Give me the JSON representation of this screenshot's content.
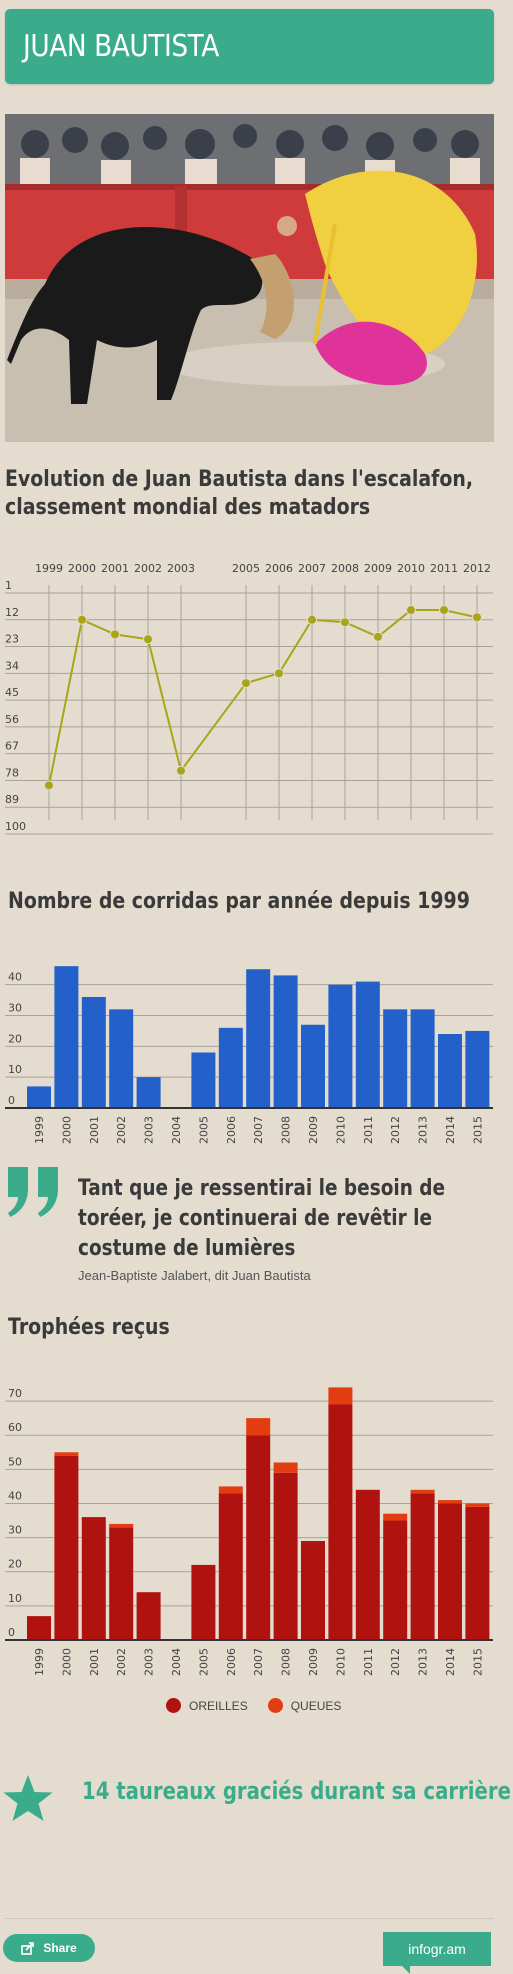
{
  "header": {
    "title": "JUAN BAUTISTA"
  },
  "photo": {
    "colors": {
      "sand": "#c9bfb0",
      "wall": "#cf3a3a",
      "cape_yellow": "#f0d040",
      "cape_pink": "#e0339a",
      "bull": "#1a1a1a"
    }
  },
  "ranking": {
    "title_line1": "Evolution de Juan Bautista dans l'escalafon,",
    "title_line2": "classement mondial des matadors"
  },
  "corridas": {
    "title": "Nombre de corridas par année depuis 1999"
  },
  "quote": {
    "text_line1": "Tant que je ressentirai le besoin de",
    "text_line2": "toréer, je continuerai de revêtir le",
    "text_line3": "costume de lumières",
    "author": "Jean-Baptiste Jalabert, dit Juan Bautista"
  },
  "trophees": {
    "title": "Trophées reçus",
    "legend": [
      {
        "label": "OREILLES",
        "color": "#b01210"
      },
      {
        "label": "QUEUES",
        "color": "#e23d10"
      }
    ]
  },
  "callout": {
    "text": "14 taureaux graciés durant sa carrière"
  },
  "footer": {
    "share_label": "Share",
    "brand": "infogr.am"
  },
  "chart_data": [
    {
      "type": "line",
      "title": "Evolution de Juan Bautista dans l'escalafon, classement mondial des matadors",
      "x": [
        "1999",
        "2000",
        "2001",
        "2002",
        "2003",
        "2005",
        "2006",
        "2007",
        "2008",
        "2009",
        "2010",
        "2011",
        "2012"
      ],
      "values": [
        80,
        12,
        18,
        20,
        74,
        38,
        34,
        12,
        13,
        19,
        8,
        8,
        11
      ],
      "y_ticks": [
        1,
        12,
        23,
        34,
        45,
        56,
        67,
        78,
        89,
        100
      ],
      "ylim": [
        1,
        100
      ],
      "y_reversed": true,
      "grid": true,
      "color": "#a8a51a"
    },
    {
      "type": "bar",
      "title": "Nombre de corridas par année depuis 1999",
      "categories": [
        "1999",
        "2000",
        "2001",
        "2002",
        "2003",
        "2004",
        "2005",
        "2006",
        "2007",
        "2008",
        "2009",
        "2010",
        "2011",
        "2012",
        "2013",
        "2014",
        "2015"
      ],
      "values": [
        7,
        46,
        36,
        32,
        10,
        0,
        18,
        26,
        45,
        43,
        27,
        40,
        41,
        32,
        32,
        24,
        25
      ],
      "y_ticks": [
        0,
        10,
        20,
        30,
        40
      ],
      "ylim": [
        0,
        48
      ],
      "grid": true,
      "color": "#2360c9"
    },
    {
      "type": "bar",
      "stacked": true,
      "title": "Trophées reçus",
      "categories": [
        "1999",
        "2000",
        "2001",
        "2002",
        "2003",
        "2004",
        "2005",
        "2006",
        "2007",
        "2008",
        "2009",
        "2010",
        "2011",
        "2012",
        "2013",
        "2014",
        "2015"
      ],
      "series": [
        {
          "name": "OREILLES",
          "values": [
            7,
            54,
            36,
            33,
            14,
            0,
            22,
            43,
            60,
            49,
            29,
            69,
            44,
            35,
            43,
            40,
            39
          ],
          "color": "#b01210"
        },
        {
          "name": "QUEUES",
          "values": [
            0,
            1,
            0,
            1,
            0,
            0,
            0,
            2,
            5,
            3,
            0,
            5,
            0,
            2,
            1,
            1,
            1
          ],
          "color": "#e23d10"
        }
      ],
      "y_ticks": [
        0,
        10,
        20,
        30,
        40,
        50,
        60,
        70
      ],
      "ylim": [
        0,
        75
      ],
      "grid": true,
      "legend": "bottom"
    }
  ]
}
